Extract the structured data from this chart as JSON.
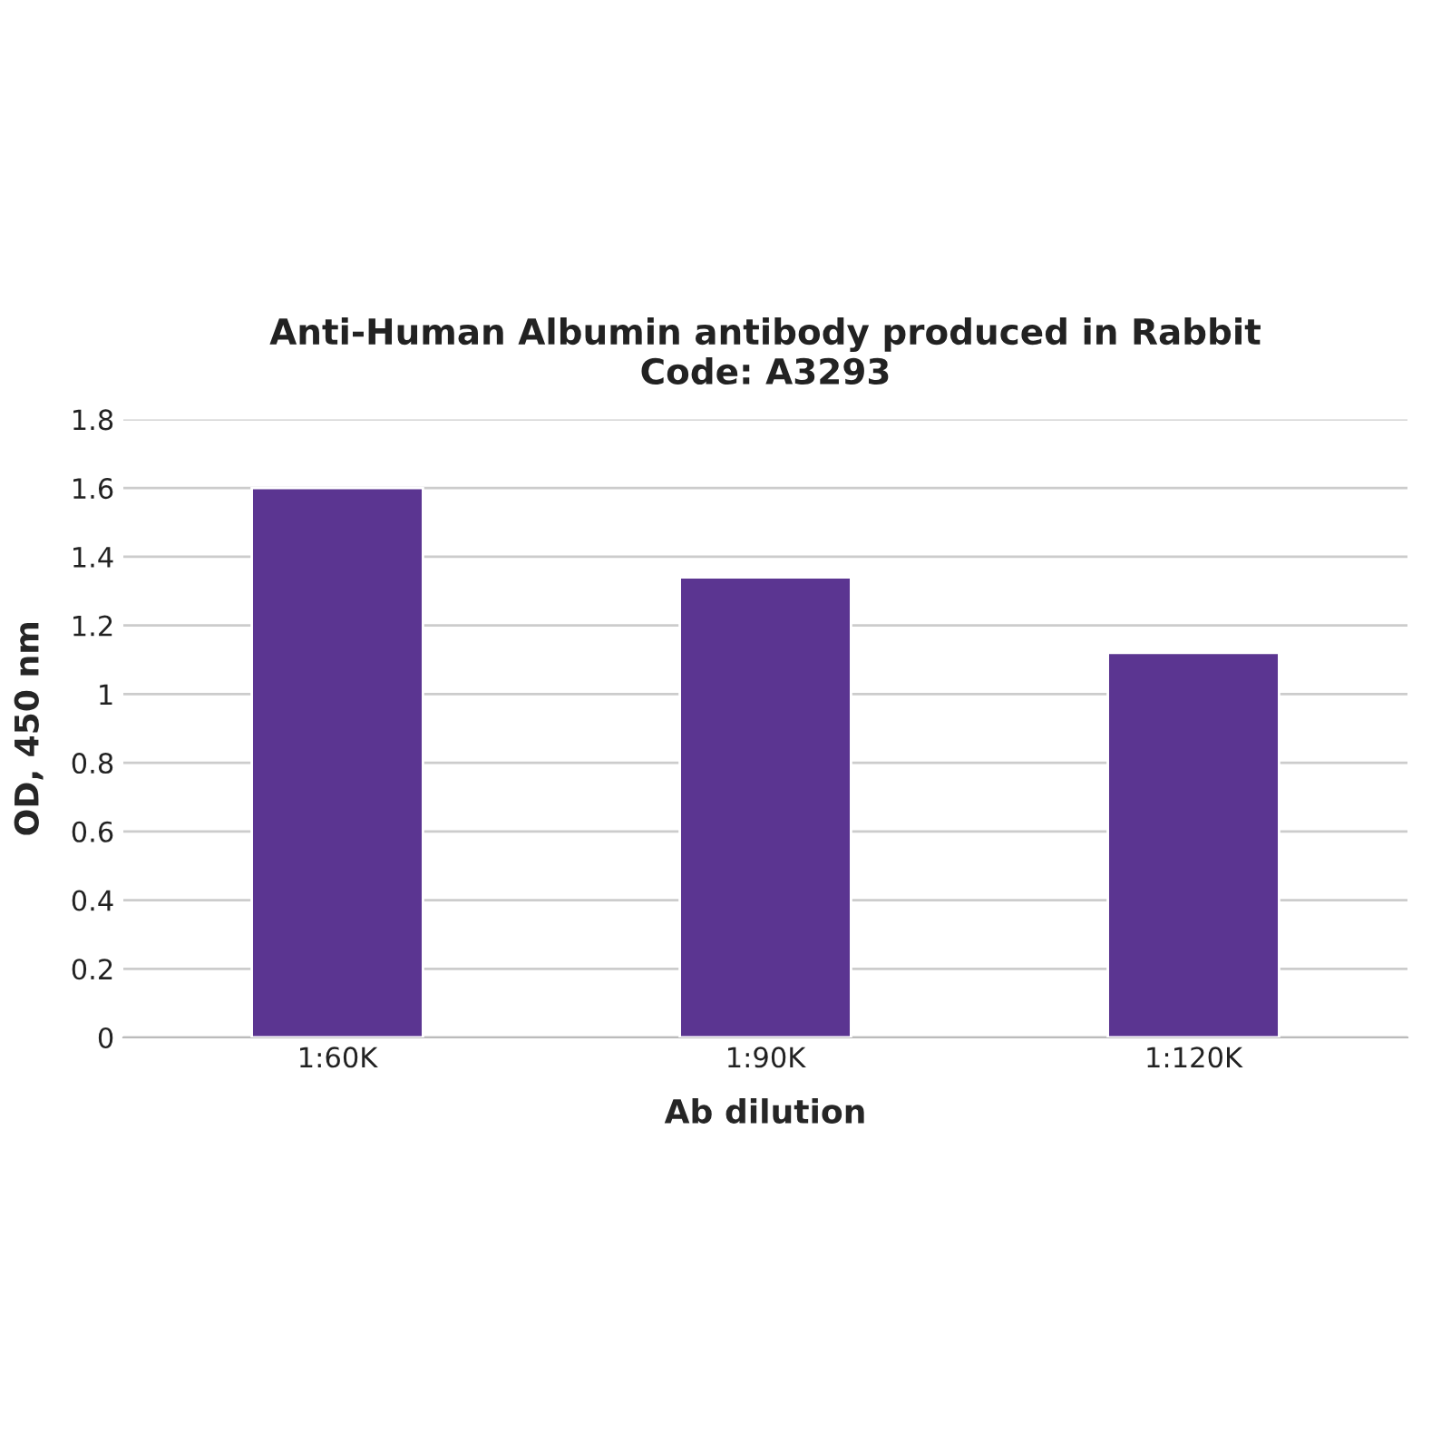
{
  "chart_data": {
    "type": "bar",
    "title": "Anti-Human Albumin antibody produced in Rabbit\nCode: A3293",
    "xlabel": "Ab dilution",
    "ylabel": "OD, 450 nm",
    "categories": [
      "1:60K",
      "1:90K",
      "1:120K"
    ],
    "values": [
      1.6,
      1.34,
      1.12
    ],
    "color": "#5b3591",
    "ylim": [
      0,
      1.8
    ],
    "yticks": [
      {
        "value": 0,
        "label": "0"
      },
      0.2,
      0.4,
      0.6,
      0.8,
      {
        "value": 1,
        "label": "1"
      },
      1.2,
      1.4,
      1.6,
      1.8
    ],
    "grid": "y",
    "legend": false
  }
}
